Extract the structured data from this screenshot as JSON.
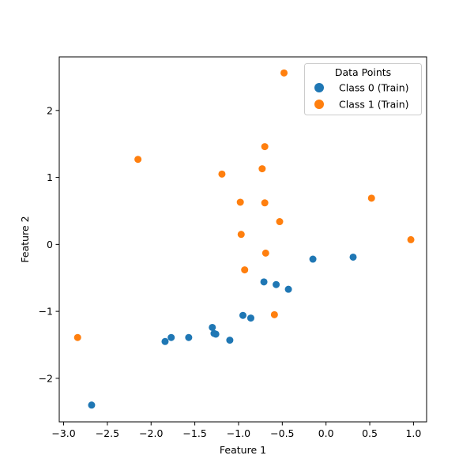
{
  "chart_data": {
    "type": "scatter",
    "title": "",
    "xlabel": "Feature 1",
    "ylabel": "Feature 2",
    "xlim": [
      -3.05,
      1.15
    ],
    "ylim": [
      -2.65,
      2.8
    ],
    "xticks": [
      -3.0,
      -2.5,
      -2.0,
      -1.5,
      -1.0,
      -0.5,
      0.0,
      0.5,
      1.0
    ],
    "xtick_labels": [
      "−3.0",
      "−2.5",
      "−2.0",
      "−1.5",
      "−1.0",
      "−0.5",
      "0.0",
      "0.5",
      "1.0"
    ],
    "yticks": [
      -2,
      -1,
      0,
      1,
      2
    ],
    "ytick_labels": [
      "−2",
      "−1",
      "0",
      "1",
      "2"
    ],
    "grid": false,
    "legend": {
      "title": "Data Points",
      "placement": "top-right"
    },
    "series": [
      {
        "name": "Class 0 (Train)",
        "color": "#1f77b4",
        "x": [
          -2.68,
          -1.84,
          -1.77,
          -1.57,
          -1.3,
          -1.28,
          -1.26,
          -1.1,
          -0.95,
          -0.86,
          -0.71,
          -0.57,
          -0.43,
          -0.15,
          0.31
        ],
        "y": [
          -2.4,
          -1.45,
          -1.39,
          -1.39,
          -1.24,
          -1.33,
          -1.34,
          -1.43,
          -1.06,
          -1.1,
          -0.56,
          -0.6,
          -0.67,
          -0.22,
          -0.19
        ]
      },
      {
        "name": "Class 1 (Train)",
        "color": "#ff7f0e",
        "x": [
          -2.84,
          -2.15,
          -1.19,
          -0.98,
          -0.97,
          -0.93,
          -0.73,
          -0.7,
          -0.7,
          -0.69,
          -0.59,
          -0.53,
          -0.48,
          0.52,
          0.97
        ],
        "y": [
          -1.39,
          1.27,
          1.05,
          0.63,
          0.15,
          -0.38,
          1.13,
          1.46,
          0.62,
          -0.13,
          -1.05,
          0.34,
          2.56,
          0.69,
          0.07
        ]
      }
    ]
  }
}
